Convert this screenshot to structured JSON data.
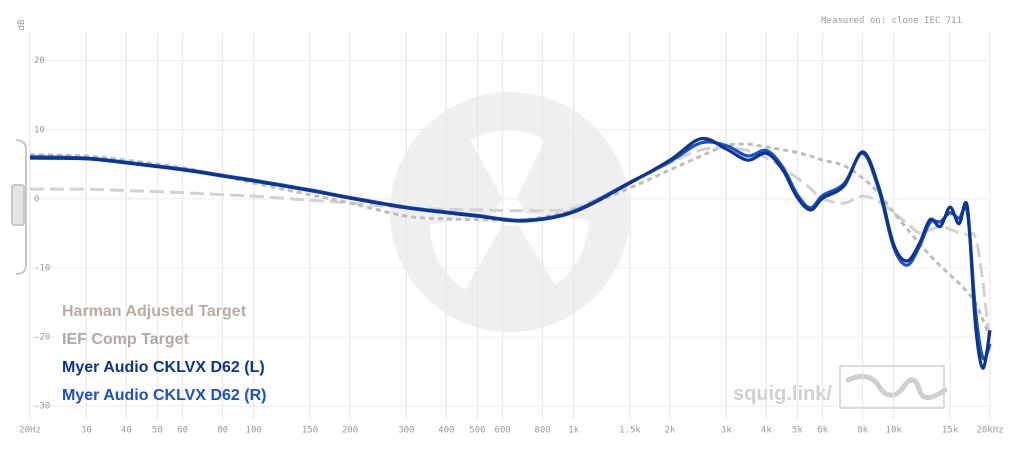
{
  "chart_data": {
    "type": "line",
    "note": "Measured on: clone IEC 711",
    "ylabel": "dB",
    "watermark": "squig.link/",
    "xscale": "log",
    "grid": true,
    "legend": "lower left",
    "xlim": [
      20,
      20000
    ],
    "ylim": [
      -32,
      24
    ],
    "yticks": [
      20,
      10,
      0,
      -10,
      -20,
      -30
    ],
    "xticks": [
      {
        "value": 20,
        "label": "20Hz"
      },
      30,
      40,
      50,
      60,
      80,
      100,
      150,
      200,
      300,
      400,
      500,
      600,
      800,
      {
        "value": 1000,
        "label": "1k"
      },
      {
        "value": 1500,
        "label": "1.5k"
      },
      {
        "value": 2000,
        "label": "2k"
      },
      {
        "value": 3000,
        "label": "3k"
      },
      {
        "value": 4000,
        "label": "4k"
      },
      {
        "value": 5000,
        "label": "5k"
      },
      {
        "value": 6000,
        "label": "6k"
      },
      {
        "value": 8000,
        "label": "8k"
      },
      {
        "value": 10000,
        "label": "10k"
      },
      {
        "value": 15000,
        "label": "15k"
      },
      {
        "value": 20000,
        "label": "20kHz"
      }
    ],
    "x": [
      20,
      30,
      40,
      60,
      80,
      100,
      150,
      200,
      300,
      400,
      500,
      700,
      1000,
      1500,
      2000,
      2500,
      3000,
      3500,
      4000,
      4500,
      5000,
      5500,
      6000,
      7000,
      8000,
      9000,
      10000,
      11000,
      12000,
      13000,
      14000,
      15000,
      16000,
      17000,
      18000,
      19000,
      20000
    ],
    "series": [
      {
        "name": "Harman Adjusted Target",
        "color": "#d2d2d2",
        "dash": "14 6",
        "text_color": "#b7aca4",
        "values": [
          1.4,
          1.4,
          1.2,
          0.9,
          0.6,
          0.4,
          -0.2,
          -0.6,
          -1.3,
          -1.5,
          -1.6,
          -1.7,
          -1.3,
          2.3,
          5.2,
          7.1,
          7.4,
          7.0,
          5.9,
          4.5,
          3.0,
          1.5,
          0,
          -0.6,
          0.4,
          -0.4,
          -2,
          -3.5,
          -4.9,
          -4.5,
          -3.9,
          -4.4,
          -4.9,
          -5.2,
          -5.6,
          -12,
          -21.6
        ]
      },
      {
        "name": "IEF Comp Target",
        "color": "#bdbdbd",
        "dash": "5 4",
        "text_color": "#b0a9a5",
        "values": [
          6.4,
          6.2,
          5.6,
          4.5,
          3.3,
          2.3,
          0.6,
          -0.6,
          -2.5,
          -2.9,
          -3.0,
          -3.0,
          -1.6,
          1.6,
          4.2,
          6.2,
          7.7,
          7.9,
          7.5,
          7.1,
          6.7,
          6.2,
          5.6,
          4.8,
          3.0,
          0.8,
          -2.0,
          -4.3,
          -6.4,
          -8.2,
          -9.7,
          -11,
          -12.2,
          -13.5,
          -15,
          -17.5,
          -20
        ]
      },
      {
        "name": "Myer Audio CKLVX D62 (L)",
        "color": "#0d3590",
        "text_color": "#0d3590",
        "values": [
          5.9,
          5.8,
          5.2,
          4.2,
          3.3,
          2.6,
          1.2,
          0.1,
          -1.3,
          -2,
          -2.5,
          -3.2,
          -1.9,
          2.3,
          5.6,
          8.7,
          7.2,
          5.6,
          6.6,
          4.2,
          0.2,
          -1.6,
          0.1,
          1.9,
          6.8,
          1.6,
          -6.6,
          -9.0,
          -6.6,
          -3.0,
          -4.0,
          -1.2,
          -3.6,
          -1.2,
          -18.0,
          -24.5,
          -19.0
        ]
      },
      {
        "name": "Myer Audio CKLVX D62 (R)",
        "color": "#1a52bf",
        "text_color": "#1a52bf",
        "values": [
          6.1,
          5.9,
          5.3,
          4.3,
          3.4,
          2.7,
          1.3,
          0.2,
          -1.2,
          -1.9,
          -2.4,
          -3.1,
          -1.8,
          2.4,
          5.4,
          8.1,
          7.7,
          6.2,
          7.0,
          4.6,
          0.6,
          -1.3,
          0.5,
          2.2,
          6.6,
          1.2,
          -7.0,
          -9.6,
          -7.0,
          -3.4,
          -3.3,
          -2.0,
          -2.8,
          -2.0,
          -16.0,
          -23.0,
          -21.0
        ]
      }
    ]
  }
}
